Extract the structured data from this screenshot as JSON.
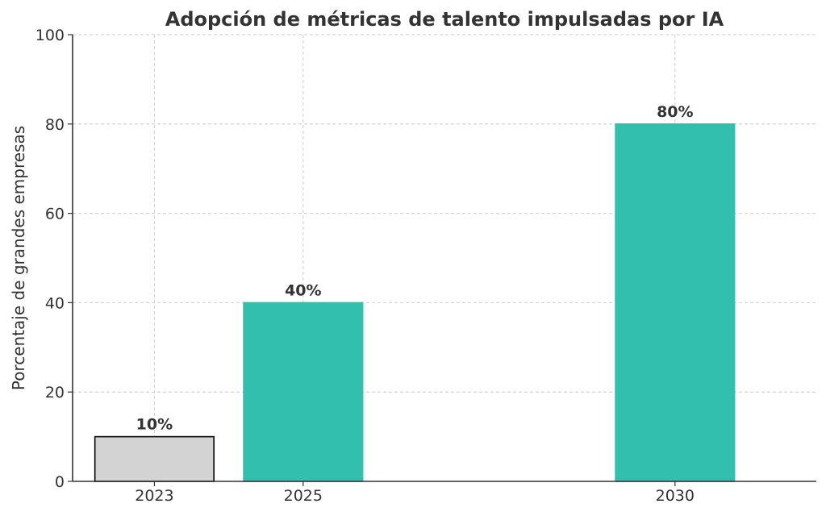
{
  "chart_data": {
    "type": "bar",
    "title": "Adopción de métricas de talento impulsadas por IA",
    "xlabel": "",
    "ylabel": "Porcentaje de grandes empresas",
    "x": [
      2023,
      2025,
      2030
    ],
    "categories": [
      "2023",
      "2025",
      "2030"
    ],
    "values": [
      10,
      40,
      80
    ],
    "data_labels": [
      "10%",
      "40%",
      "80%"
    ],
    "bar_colors": [
      "#d3d3d3",
      "#33bfad",
      "#33bfad"
    ],
    "bar_edge_colors": [
      "#000000",
      "#33bfad",
      "#33bfad"
    ],
    "ylim": [
      0,
      100
    ],
    "yticks": [
      0,
      20,
      40,
      60,
      80,
      100
    ],
    "xlim": [
      2021.9,
      2031.9
    ],
    "bar_width": 1.6,
    "grid": true,
    "grid_style": "dashed",
    "legend": "none"
  }
}
